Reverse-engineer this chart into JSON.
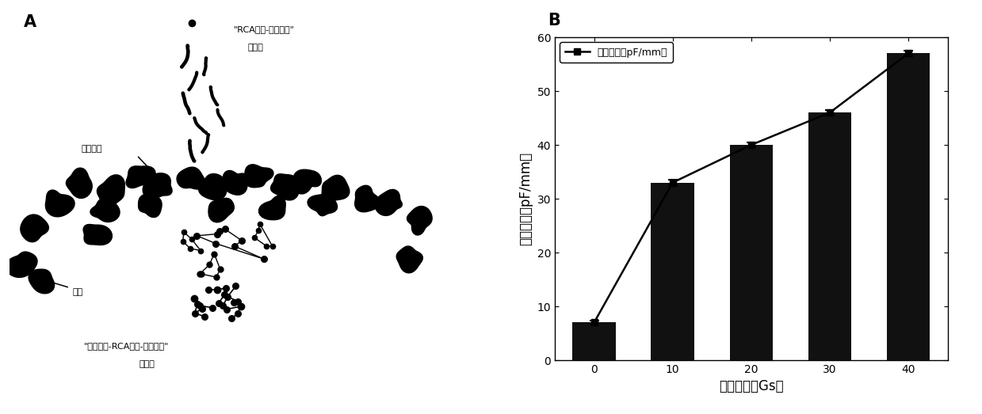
{
  "panel_B": {
    "x": [
      0,
      10,
      20,
      30,
      40
    ],
    "bar_heights": [
      7,
      33,
      40,
      46,
      57
    ],
    "error_bars": [
      0.3,
      0.5,
      0.5,
      0.5,
      0.5
    ],
    "bar_color": "#111111",
    "bar_width": 5.5,
    "xlabel": "磁场强度（Gs）",
    "ylabel": "介电常数（pF/mm）",
    "legend_label": "介电常数（pF/mm）",
    "ylim": [
      0,
      60
    ],
    "yticks": [
      0,
      10,
      20,
      30,
      40,
      50,
      60
    ],
    "xticks": [
      0,
      10,
      20,
      30,
      40
    ],
    "panel_label": "B",
    "font_size_tick": 11,
    "font_size_label": 12
  },
  "panel_A": {
    "panel_label": "A",
    "label_rca_line1": "\"RCA产物-纳米颗粒\"",
    "label_rca_line2": "聚合物",
    "label_magnetic": "磁性颗粒",
    "label_silicone": "硅油",
    "label_complex_line1": "\"磁性颗粒-RCA产物-纳米颗粒\"",
    "label_complex_line2": "聚合物"
  }
}
